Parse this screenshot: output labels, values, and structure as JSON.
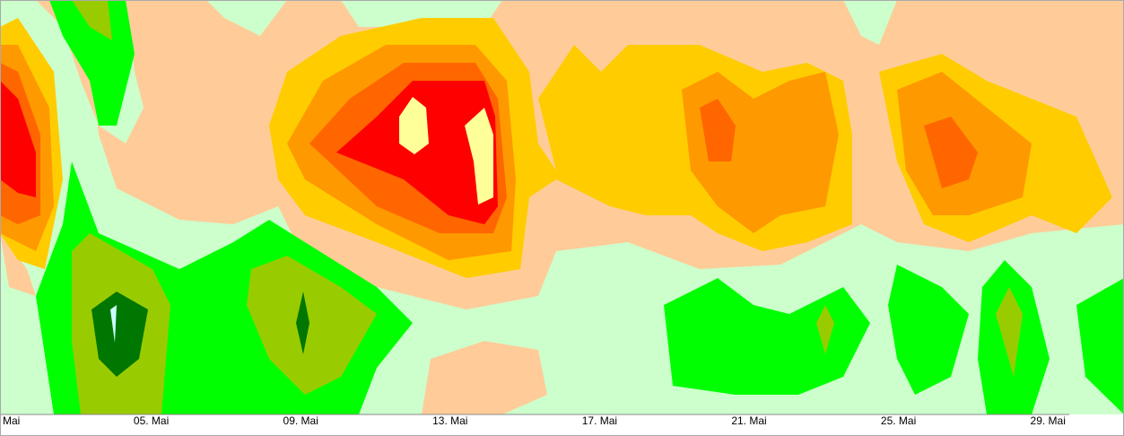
{
  "chart_data": {
    "type": "contour",
    "categories": [
      "Mai",
      "05. Mai",
      "09. Mai",
      "13. Mai",
      "17. Mai",
      "21. Mai",
      "25. Mai",
      "29. Mai"
    ]
  }
}
